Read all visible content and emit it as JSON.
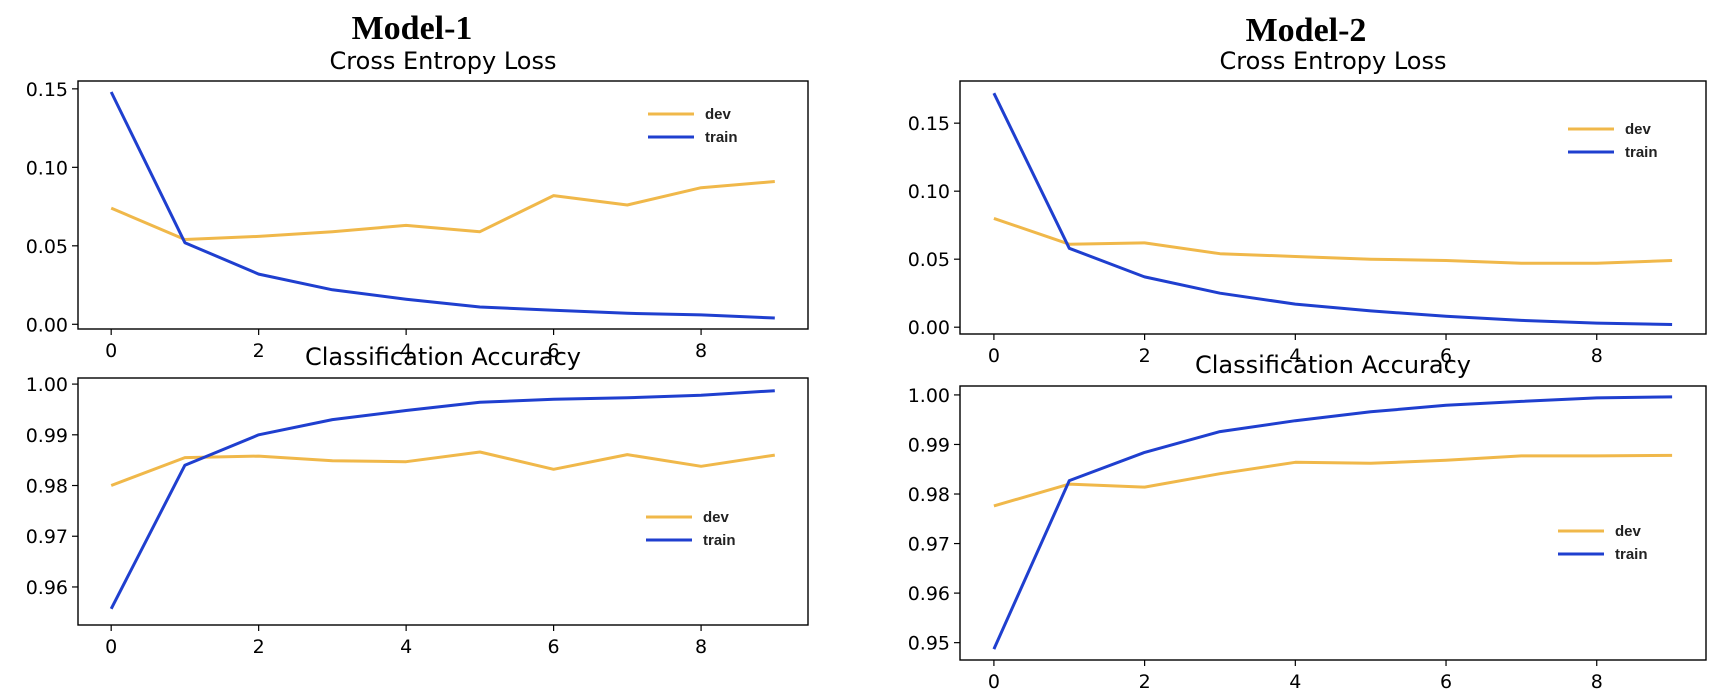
{
  "titles": {
    "model1": "Model-1",
    "model2": "Model-2"
  },
  "colors": {
    "dev": "#f0b84a",
    "train": "#1f3fcf"
  },
  "chart_data": [
    {
      "type": "line",
      "model": "Model-1",
      "title": "Cross Entropy Loss",
      "x": [
        0,
        1,
        2,
        3,
        4,
        5,
        6,
        7,
        8,
        9
      ],
      "xticks": [
        0,
        2,
        4,
        6,
        8
      ],
      "yticks": [
        0.0,
        0.05,
        0.1,
        0.15
      ],
      "ytick_decimals": 2,
      "xlim": [
        -0.45,
        9.45
      ],
      "ylim": [
        -0.003,
        0.155
      ],
      "legend": "upper right",
      "series": [
        {
          "name": "dev",
          "values": [
            0.074,
            0.054,
            0.056,
            0.059,
            0.063,
            0.059,
            0.082,
            0.076,
            0.087,
            0.091
          ]
        },
        {
          "name": "train",
          "values": [
            0.148,
            0.052,
            0.032,
            0.022,
            0.016,
            0.011,
            0.009,
            0.007,
            0.006,
            0.004
          ]
        }
      ]
    },
    {
      "type": "line",
      "model": "Model-1",
      "title": "Classification Accuracy",
      "x": [
        0,
        1,
        2,
        3,
        4,
        5,
        6,
        7,
        8,
        9
      ],
      "xticks": [
        0,
        2,
        4,
        6,
        8
      ],
      "yticks": [
        0.96,
        0.97,
        0.98,
        0.99,
        1.0
      ],
      "ytick_decimals": 2,
      "xlim": [
        -0.45,
        9.45
      ],
      "ylim": [
        0.9525,
        1.0012
      ],
      "legend": "center right",
      "series": [
        {
          "name": "dev",
          "values": [
            0.98,
            0.9855,
            0.9858,
            0.9849,
            0.9847,
            0.9866,
            0.9832,
            0.9861,
            0.9838,
            0.986
          ]
        },
        {
          "name": "train",
          "values": [
            0.9557,
            0.984,
            0.99,
            0.993,
            0.9948,
            0.9964,
            0.997,
            0.9973,
            0.9978,
            0.9987
          ]
        }
      ]
    },
    {
      "type": "line",
      "model": "Model-2",
      "title": "Cross Entropy Loss",
      "x": [
        0,
        1,
        2,
        3,
        4,
        5,
        6,
        7,
        8,
        9
      ],
      "xticks": [
        0,
        2,
        4,
        6,
        8
      ],
      "yticks": [
        0.0,
        0.05,
        0.1,
        0.15
      ],
      "ytick_decimals": 2,
      "xlim": [
        -0.45,
        9.45
      ],
      "ylim": [
        -0.005,
        0.181
      ],
      "legend": "upper right",
      "series": [
        {
          "name": "dev",
          "values": [
            0.08,
            0.061,
            0.062,
            0.054,
            0.052,
            0.05,
            0.049,
            0.047,
            0.047,
            0.049
          ]
        },
        {
          "name": "train",
          "values": [
            0.172,
            0.058,
            0.037,
            0.025,
            0.017,
            0.012,
            0.008,
            0.005,
            0.003,
            0.002
          ]
        }
      ]
    },
    {
      "type": "line",
      "model": "Model-2",
      "title": "Classification Accuracy",
      "x": [
        0,
        1,
        2,
        3,
        4,
        5,
        6,
        7,
        8,
        9
      ],
      "xticks": [
        0,
        2,
        4,
        6,
        8
      ],
      "yticks": [
        0.95,
        0.96,
        0.97,
        0.98,
        0.99,
        1.0
      ],
      "ytick_decimals": 2,
      "xlim": [
        -0.45,
        9.45
      ],
      "ylim": [
        0.9465,
        1.0018
      ],
      "legend": "center right",
      "series": [
        {
          "name": "dev",
          "values": [
            0.9776,
            0.982,
            0.9814,
            0.9841,
            0.9864,
            0.9862,
            0.9868,
            0.9877,
            0.9877,
            0.9878
          ]
        },
        {
          "name": "train",
          "values": [
            0.9487,
            0.9827,
            0.9884,
            0.9926,
            0.9948,
            0.9966,
            0.9979,
            0.9987,
            0.9994,
            0.9996
          ]
        }
      ]
    }
  ]
}
